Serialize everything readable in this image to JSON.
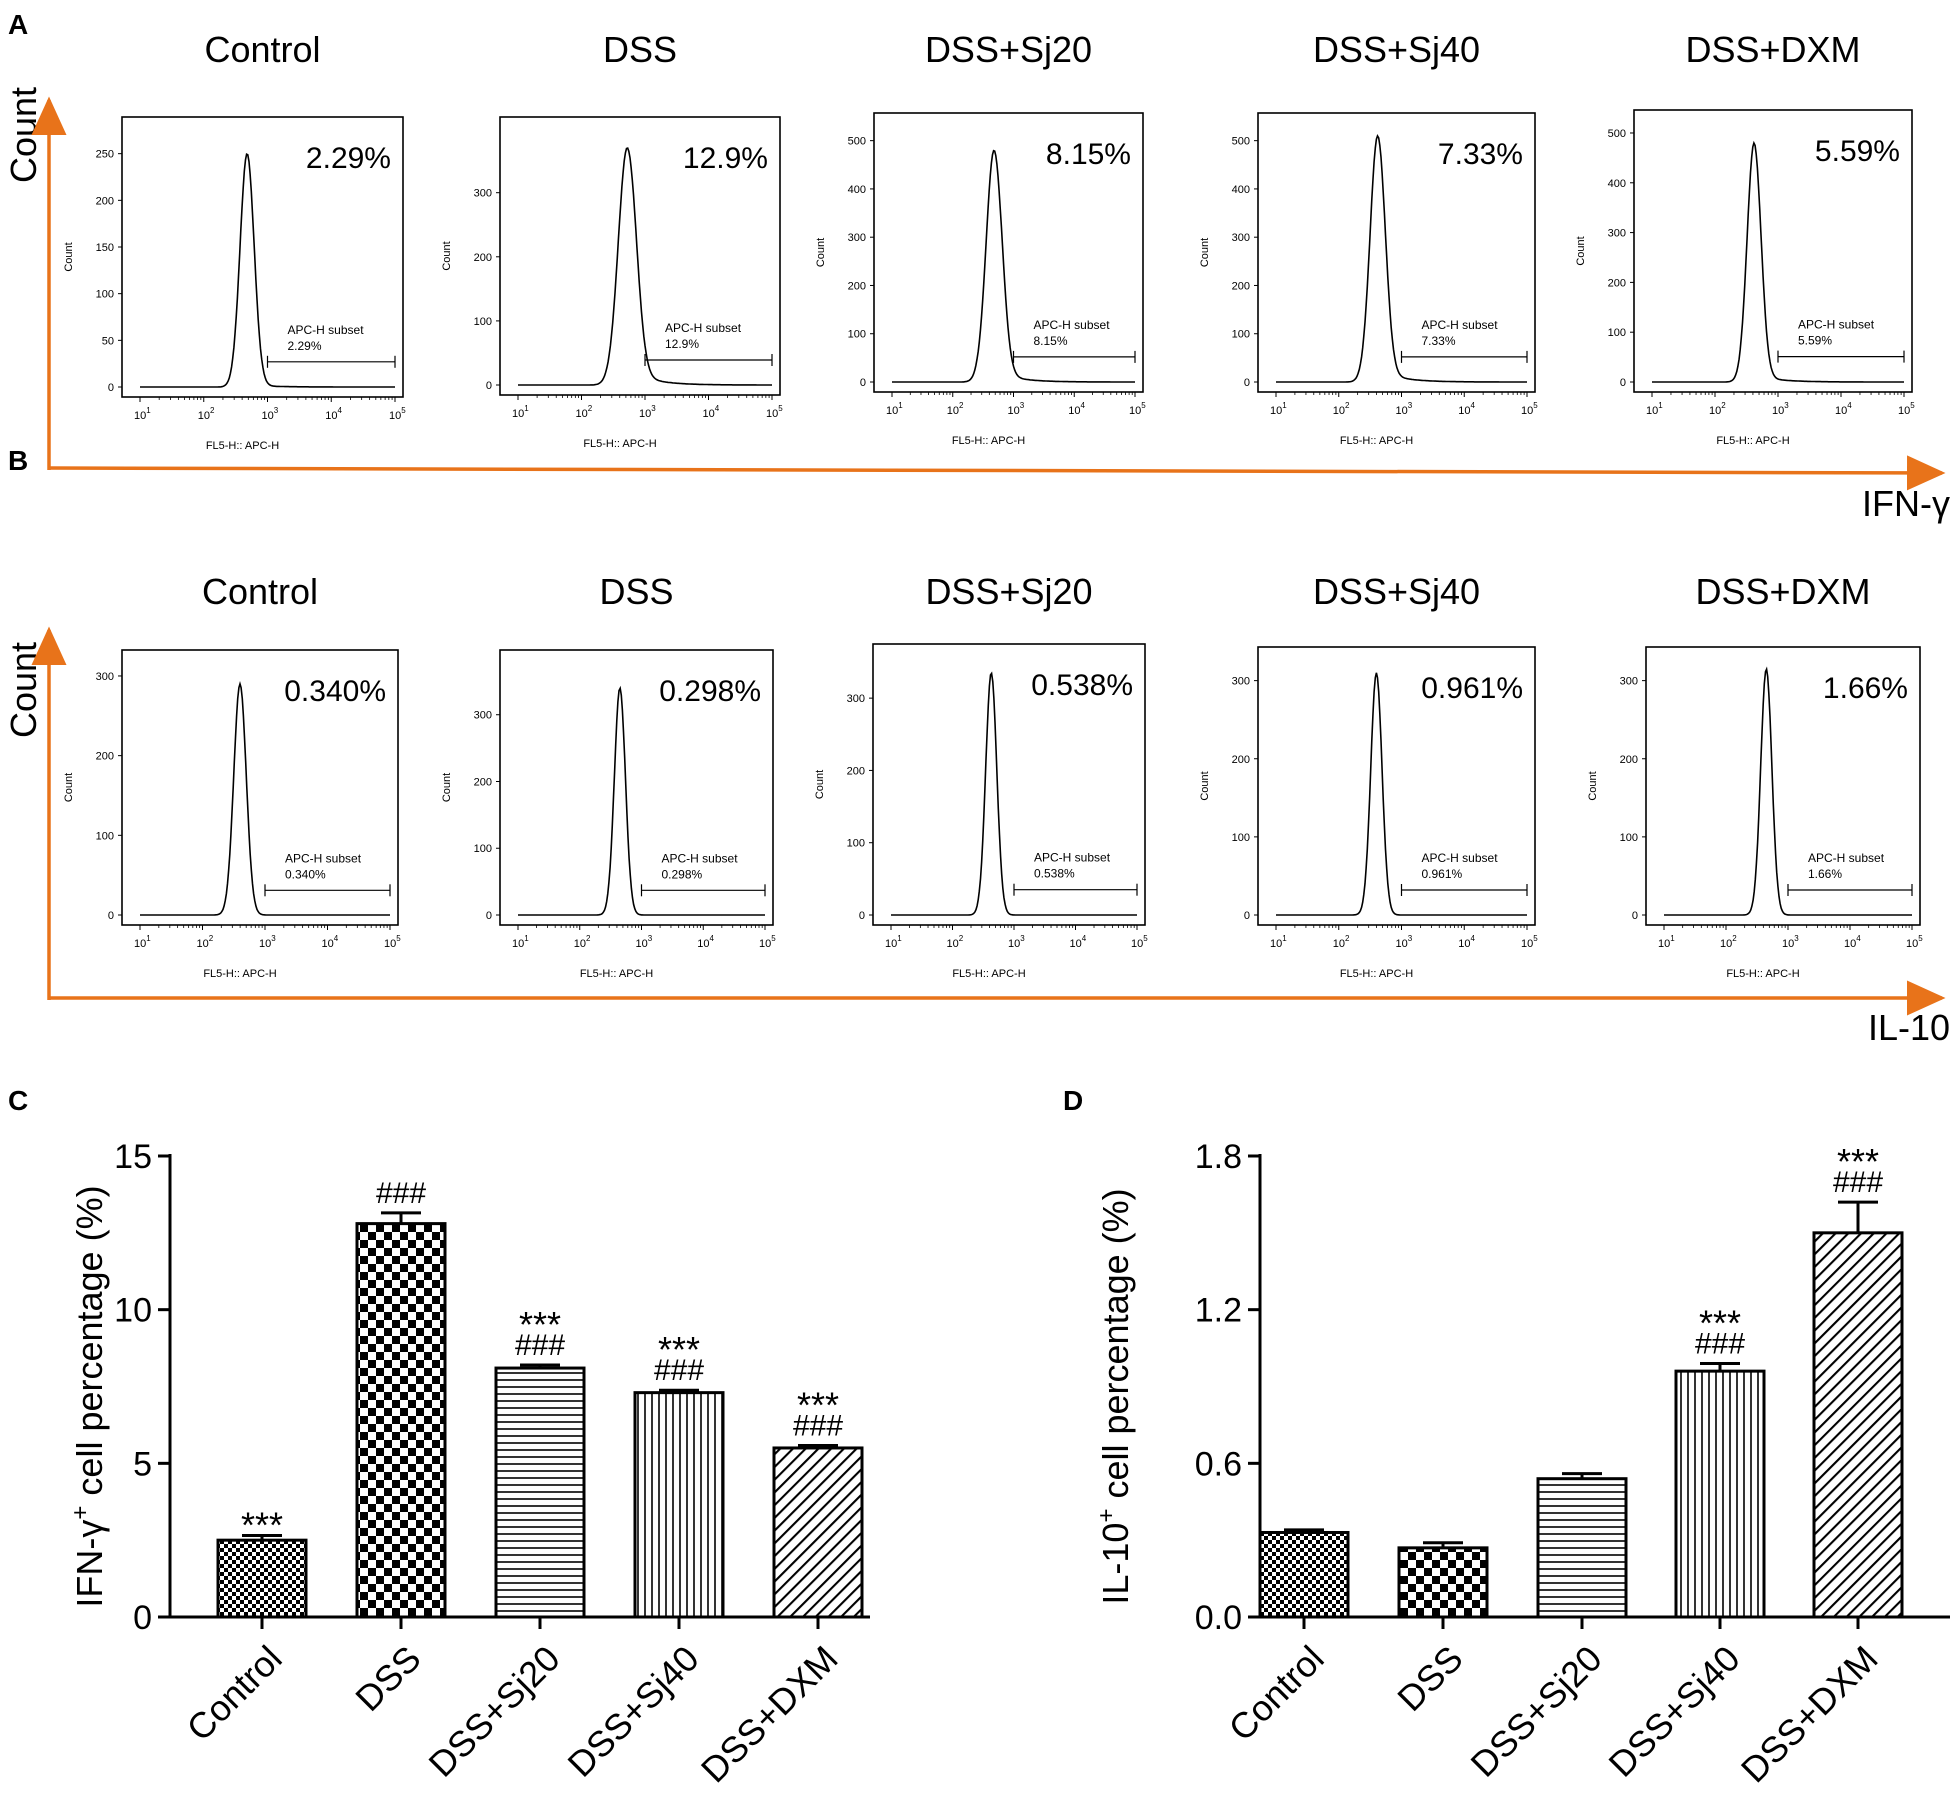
{
  "panel_labels": [
    "A",
    "B",
    "C",
    "D"
  ],
  "colors": {
    "arrow": "#e8731a",
    "ink": "#000000",
    "accent_text": "#1a1a1a"
  },
  "row_a": {
    "arrow_label": "IFN-γ",
    "yaxis_label": "Count",
    "histograms": [
      {
        "group": "Control",
        "big_pct": "2.29%",
        "subset_label": "APC-H subset",
        "subset_pct": "2.29%",
        "yticks": [
          "0",
          "50",
          "100",
          "150",
          "200",
          "250"
        ],
        "ymax": 270,
        "peak": 250,
        "mode_log": 2.68,
        "sigma": 0.11,
        "tail": 0.01,
        "gate_log": [
          3.0,
          5.0
        ]
      },
      {
        "group": "DSS",
        "big_pct": "12.9%",
        "subset_label": "APC-H subset",
        "subset_pct": "12.9%",
        "yticks": [
          "0",
          "100",
          "200",
          "300"
        ],
        "ymax": 390,
        "peak": 370,
        "mode_log": 2.72,
        "sigma": 0.14,
        "tail": 0.07,
        "gate_log": [
          3.0,
          5.0
        ]
      },
      {
        "group": "DSS+Sj20",
        "big_pct": "8.15%",
        "subset_label": "APC-H subset",
        "subset_pct": "8.15%",
        "yticks": [
          "0",
          "100",
          "200",
          "300",
          "400",
          "500"
        ],
        "ymax": 520,
        "peak": 480,
        "mode_log": 2.68,
        "sigma": 0.13,
        "tail": 0.05,
        "gate_log": [
          3.0,
          5.0
        ]
      },
      {
        "group": "DSS+Sj40",
        "big_pct": "7.33%",
        "subset_label": "APC-H subset",
        "subset_pct": "7.33%",
        "yticks": [
          "0",
          "100",
          "200",
          "300",
          "400",
          "500"
        ],
        "ymax": 520,
        "peak": 510,
        "mode_log": 2.62,
        "sigma": 0.12,
        "tail": 0.05,
        "gate_log": [
          3.0,
          5.0
        ]
      },
      {
        "group": "DSS+DXM",
        "big_pct": "5.59%",
        "subset_label": "APC-H subset",
        "subset_pct": "5.59%",
        "yticks": [
          "0",
          "100",
          "200",
          "300",
          "400",
          "500"
        ],
        "ymax": 510,
        "peak": 480,
        "mode_log": 2.62,
        "sigma": 0.11,
        "tail": 0.03,
        "gate_log": [
          3.0,
          5.0
        ]
      }
    ]
  },
  "row_b": {
    "arrow_label": "IL-10",
    "yaxis_label": "Count",
    "histograms": [
      {
        "group": "Control",
        "big_pct": "0.340%",
        "subset_label": "APC-H subset",
        "subset_pct": "0.340%",
        "yticks": [
          "0",
          "100",
          "200",
          "300"
        ],
        "ymax": 310,
        "peak": 290,
        "mode_log": 2.6,
        "sigma": 0.1,
        "tail": 0.0,
        "gate_log": [
          3.0,
          5.0
        ]
      },
      {
        "group": "DSS",
        "big_pct": "0.298%",
        "subset_label": "APC-H subset",
        "subset_pct": "0.298%",
        "yticks": [
          "0",
          "100",
          "200",
          "300"
        ],
        "ymax": 370,
        "peak": 340,
        "mode_log": 2.65,
        "sigma": 0.09,
        "tail": 0.0,
        "gate_log": [
          3.0,
          5.0
        ]
      },
      {
        "group": "DSS+Sj20",
        "big_pct": "0.538%",
        "subset_label": "APC-H subset",
        "subset_pct": "0.538%",
        "yticks": [
          "0",
          "100",
          "200",
          "300"
        ],
        "ymax": 350,
        "peak": 335,
        "mode_log": 2.63,
        "sigma": 0.09,
        "tail": 0.0,
        "gate_log": [
          3.0,
          5.0
        ]
      },
      {
        "group": "DSS+Sj40",
        "big_pct": "0.961%",
        "subset_label": "APC-H subset",
        "subset_pct": "0.961%",
        "yticks": [
          "0",
          "100",
          "200",
          "300"
        ],
        "ymax": 320,
        "peak": 310,
        "mode_log": 2.6,
        "sigma": 0.09,
        "tail": 0.0,
        "gate_log": [
          3.0,
          5.0
        ]
      },
      {
        "group": "DSS+DXM",
        "big_pct": "1.66%",
        "subset_label": "APC-H subset",
        "subset_pct": "1.66%",
        "yticks": [
          "0",
          "100",
          "200",
          "300"
        ],
        "ymax": 320,
        "peak": 315,
        "mode_log": 2.65,
        "sigma": 0.09,
        "tail": 0.0,
        "gate_log": [
          3.0,
          5.0
        ]
      }
    ]
  },
  "histogram_axis": {
    "xlabel": "FL5-H:: APC-H",
    "ylabel": "Count",
    "xtick_base": "10",
    "xtick_exponents": [
      "1",
      "2",
      "3",
      "4",
      "5"
    ]
  },
  "chart_data": [
    {
      "id": "C",
      "type": "bar",
      "title": "",
      "ylabel": "IFN-γ⁺ cell percentage (%)",
      "ylabel_main": "IFN-γ",
      "ylabel_sup": "+",
      "ylabel_rest": " cell percentage (%)",
      "ylim": [
        0,
        15
      ],
      "yticks": [
        0,
        5,
        10,
        15
      ],
      "ytick_labels": [
        "0",
        "5",
        "10",
        "15"
      ],
      "categories": [
        "Control",
        "DSS",
        "DSS+Sj20",
        "DSS+Sj40",
        "DSS+DXM"
      ],
      "values": [
        2.5,
        12.8,
        8.1,
        7.3,
        5.5
      ],
      "errors": [
        0.15,
        0.35,
        0.1,
        0.08,
        0.08
      ],
      "patterns": [
        "check-fine",
        "check-coarse",
        "hlines",
        "vlines",
        "diag"
      ],
      "annotations": [
        [
          "***"
        ],
        [
          "###"
        ],
        [
          "***",
          "###"
        ],
        [
          "***",
          "###"
        ],
        [
          "***",
          "###"
        ]
      ]
    },
    {
      "id": "D",
      "type": "bar",
      "title": "",
      "ylabel": "IL-10⁺ cell percentage (%)",
      "ylabel_main": "IL-10",
      "ylabel_sup": "+",
      "ylabel_rest": " cell percentage (%)",
      "ylim": [
        0,
        1.8
      ],
      "yticks": [
        0,
        0.6,
        1.2,
        1.8
      ],
      "ytick_labels": [
        "0.0",
        "0.6",
        "1.2",
        "1.8"
      ],
      "categories": [
        "Control",
        "DSS",
        "DSS+Sj20",
        "DSS+Sj40",
        "DSS+DXM"
      ],
      "values": [
        0.33,
        0.27,
        0.54,
        0.96,
        1.5
      ],
      "errors": [
        0.01,
        0.02,
        0.02,
        0.03,
        0.12
      ],
      "patterns": [
        "check-fine",
        "check-coarse",
        "hlines",
        "vlines",
        "diag"
      ],
      "annotations": [
        [],
        [],
        [],
        [
          "***",
          "###"
        ],
        [
          "***",
          "###"
        ]
      ]
    }
  ]
}
